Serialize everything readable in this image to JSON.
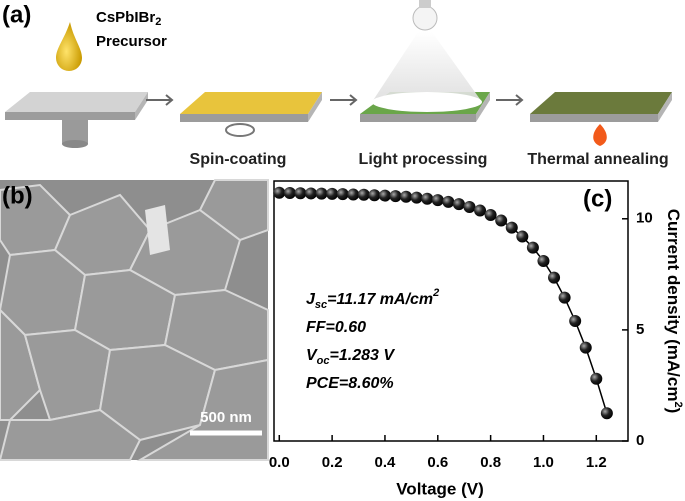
{
  "panel_labels": [
    "(a)",
    "(b)",
    "(c)"
  ],
  "diagram": {
    "precursor": {
      "name": "CsPbIBr",
      "sub": "2",
      "line2": "Precursor"
    },
    "steps": [
      "Spin-coating",
      "Light processing",
      "Thermal annealing"
    ]
  },
  "scale_bar": "500 nm",
  "chart_data": {
    "type": "line",
    "x": [
      0,
      0.04,
      0.08,
      0.12,
      0.16,
      0.2,
      0.24,
      0.28,
      0.32,
      0.36,
      0.4,
      0.44,
      0.48,
      0.52,
      0.56,
      0.6,
      0.64,
      0.68,
      0.72,
      0.76,
      0.8,
      0.84,
      0.88,
      0.92,
      0.96,
      1.0,
      1.04,
      1.08,
      1.12,
      1.16,
      1.2,
      1.24
    ],
    "values": [
      11.17,
      11.16,
      11.15,
      11.14,
      11.13,
      11.12,
      11.11,
      11.09,
      11.08,
      11.06,
      11.04,
      11.02,
      10.99,
      10.95,
      10.9,
      10.84,
      10.76,
      10.66,
      10.53,
      10.37,
      10.17,
      9.92,
      9.6,
      9.2,
      8.7,
      8.1,
      7.35,
      6.45,
      5.4,
      4.2,
      2.8,
      1.25
    ],
    "color": "#000000",
    "xlabel": "Voltage (V)",
    "ylabel": {
      "text": "Current density (mA/cm",
      "sup": "2",
      "end": ")"
    },
    "xlim": [
      -0.02,
      1.32
    ],
    "ylim": [
      0,
      11.7
    ],
    "xticks": [
      {
        "value": 0,
        "label": "0.0"
      },
      0.2,
      0.4,
      0.6,
      0.8,
      {
        "value": 1,
        "label": "1.0"
      },
      1.2
    ],
    "yticks": [
      0,
      5,
      10
    ],
    "y_axis_side": "right",
    "annotations": [
      {
        "main": "J",
        "sub": "sc",
        "rest": "=11.17 mA/cm",
        "sup": "2"
      },
      {
        "main": "FF=0.60"
      },
      {
        "main": "V",
        "sub": "oc",
        "rest": "=1.283 V"
      },
      {
        "main": "PCE=8.60%"
      }
    ]
  }
}
